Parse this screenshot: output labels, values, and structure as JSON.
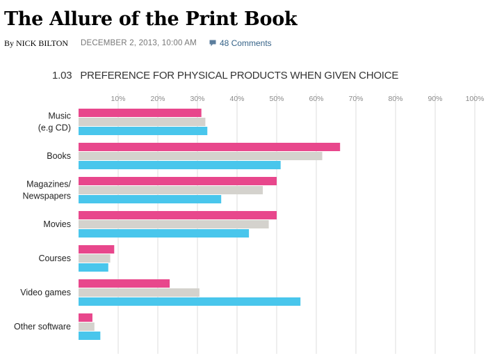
{
  "article": {
    "headline": "The Allure of the Print Book",
    "byline_prefix": "By",
    "author": "NICK BILTON",
    "dateline": "DECEMBER 2, 2013, 10:00 AM",
    "comments_label": "48 Comments",
    "comments_icon": "speech-bubble-icon"
  },
  "colors": {
    "pink": "#e8478c",
    "grey": "#d4d2cd",
    "blue": "#49c6ec",
    "gridline": "#dcdcdc",
    "comments_link": "#366388"
  },
  "chart_data": {
    "type": "bar",
    "orientation": "horizontal",
    "number": "1.03",
    "title": "PREFERENCE FOR PHYSICAL PRODUCTS WHEN GIVEN CHOICE",
    "xlim": [
      0,
      100
    ],
    "xticks": [
      10,
      20,
      30,
      40,
      50,
      60,
      70,
      80,
      90,
      100
    ],
    "tick_suffix": "%",
    "grid": true,
    "legend": "none",
    "categories": [
      [
        "Music",
        "(e.g CD)"
      ],
      [
        "Books"
      ],
      [
        "Magazines/",
        "Newspapers"
      ],
      [
        "Movies"
      ],
      [
        "Courses"
      ],
      [
        "Video games"
      ],
      [
        "Other software"
      ]
    ],
    "series": [
      {
        "name": "pink series",
        "color": "#e8478c",
        "values": [
          31,
          66,
          50,
          50,
          9,
          23,
          3.5
        ]
      },
      {
        "name": "grey series",
        "color": "#d4d2cd",
        "values": [
          32,
          61.5,
          46.5,
          48,
          8,
          30.5,
          4
        ]
      },
      {
        "name": "blue series",
        "color": "#49c6ec",
        "values": [
          32.5,
          51,
          36,
          43,
          7.5,
          56,
          5.5
        ]
      }
    ]
  }
}
